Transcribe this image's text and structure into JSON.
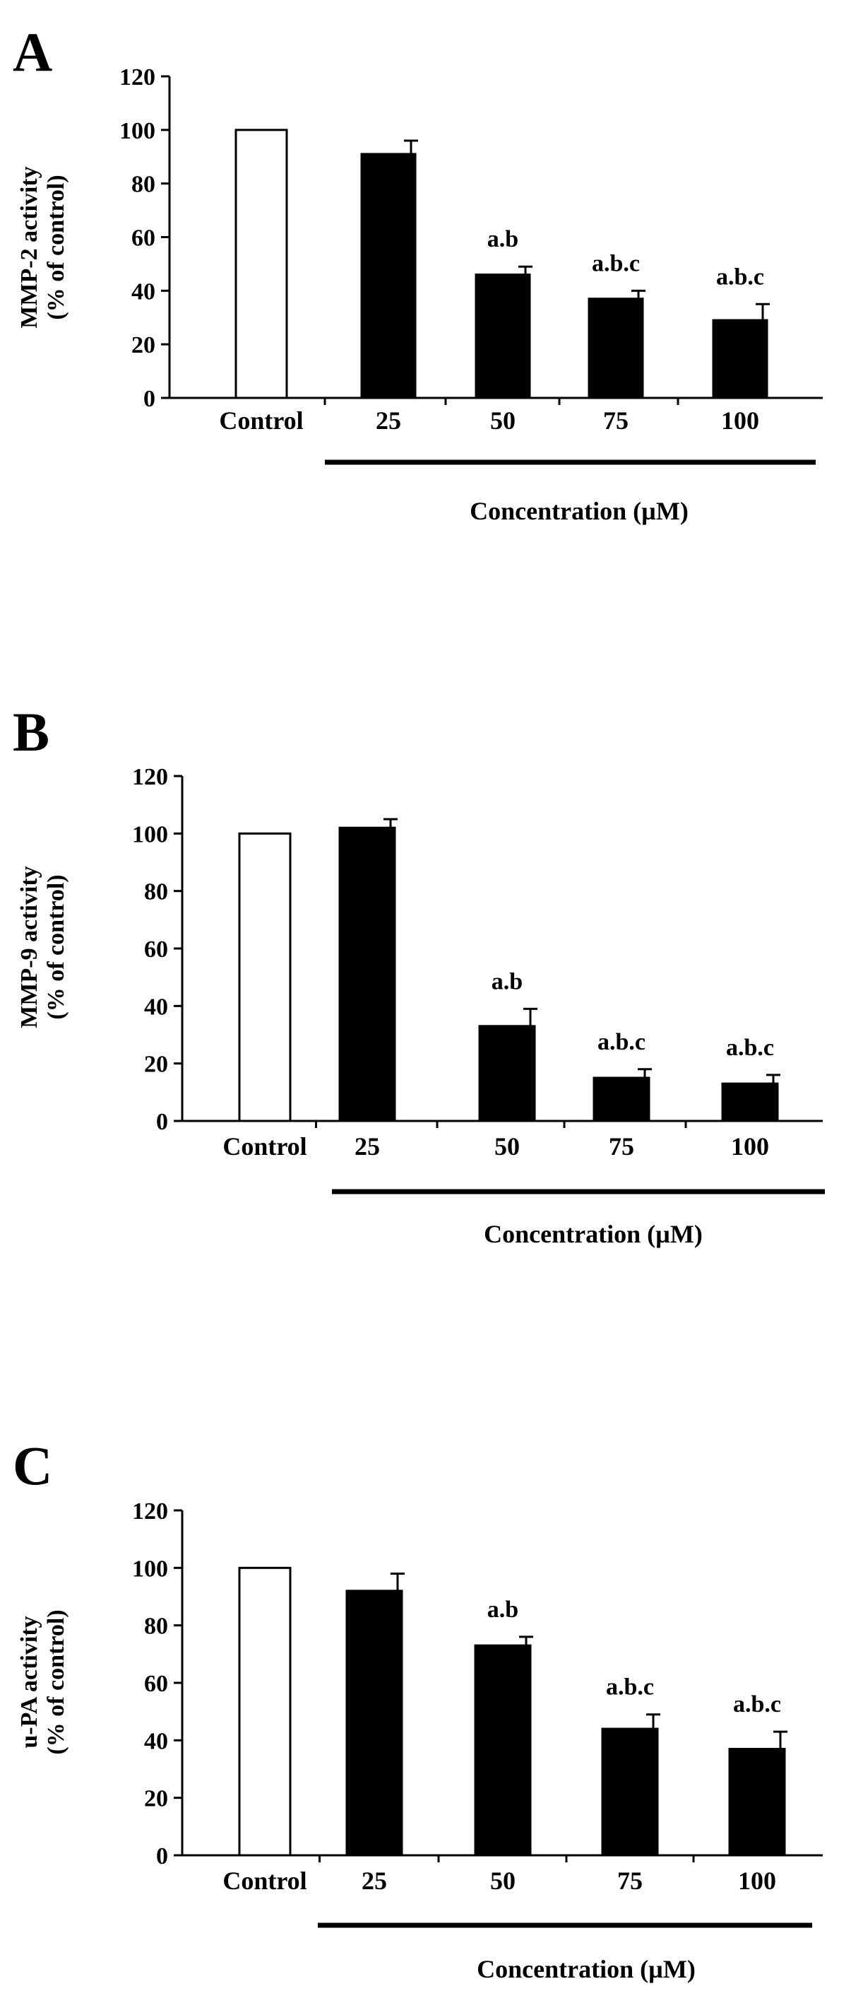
{
  "chart_data": [
    {
      "type": "bar",
      "panel_label": "A",
      "categories": [
        "Control",
        "25",
        "50",
        "75",
        "100"
      ],
      "values": [
        100,
        91,
        46,
        37,
        29
      ],
      "errors": [
        0,
        5,
        3,
        3,
        6
      ],
      "annotations": [
        "",
        "",
        "a.b",
        "a.b.c",
        "a.b.c"
      ],
      "bar_colors": [
        "#ffffff",
        "#000000",
        "#000000",
        "#000000",
        "#000000"
      ],
      "ylabel_line1": "MMP-2 activity",
      "ylabel_line2": "(% of control)",
      "xlabel": "Concentration  (µM)",
      "ylim": [
        0,
        120
      ],
      "yticks": [
        0,
        20,
        40,
        60,
        80,
        100,
        120
      ],
      "grid": false
    },
    {
      "type": "bar",
      "panel_label": "B",
      "categories": [
        "Control",
        "25",
        "50",
        "75",
        "100"
      ],
      "values": [
        100,
        102,
        33,
        15,
        13
      ],
      "errors": [
        0,
        3,
        6,
        3,
        3
      ],
      "annotations": [
        "",
        "",
        "a.b",
        "a.b.c",
        "a.b.c"
      ],
      "bar_colors": [
        "#ffffff",
        "#000000",
        "#000000",
        "#000000",
        "#000000"
      ],
      "ylabel_line1": "MMP-9 activity",
      "ylabel_line2": "(% of control)",
      "xlabel": "Concentration (µM)",
      "ylim": [
        0,
        120
      ],
      "yticks": [
        0,
        20,
        40,
        60,
        80,
        100,
        120
      ],
      "grid": false
    },
    {
      "type": "bar",
      "panel_label": "C",
      "categories": [
        "Control",
        "25",
        "50",
        "75",
        "100"
      ],
      "values": [
        100,
        92,
        73,
        44,
        37
      ],
      "errors": [
        0,
        6,
        3,
        5,
        6
      ],
      "annotations": [
        "",
        "",
        "a.b",
        "a.b.c",
        "a.b.c"
      ],
      "bar_colors": [
        "#ffffff",
        "#000000",
        "#000000",
        "#000000",
        "#000000"
      ],
      "ylabel_line1": "u-PA activity",
      "ylabel_line2": "(% of control)",
      "xlabel": "Concentration (µM)",
      "ylim": [
        0,
        120
      ],
      "yticks": [
        0,
        20,
        40,
        60,
        80,
        100,
        120
      ],
      "grid": false
    }
  ]
}
